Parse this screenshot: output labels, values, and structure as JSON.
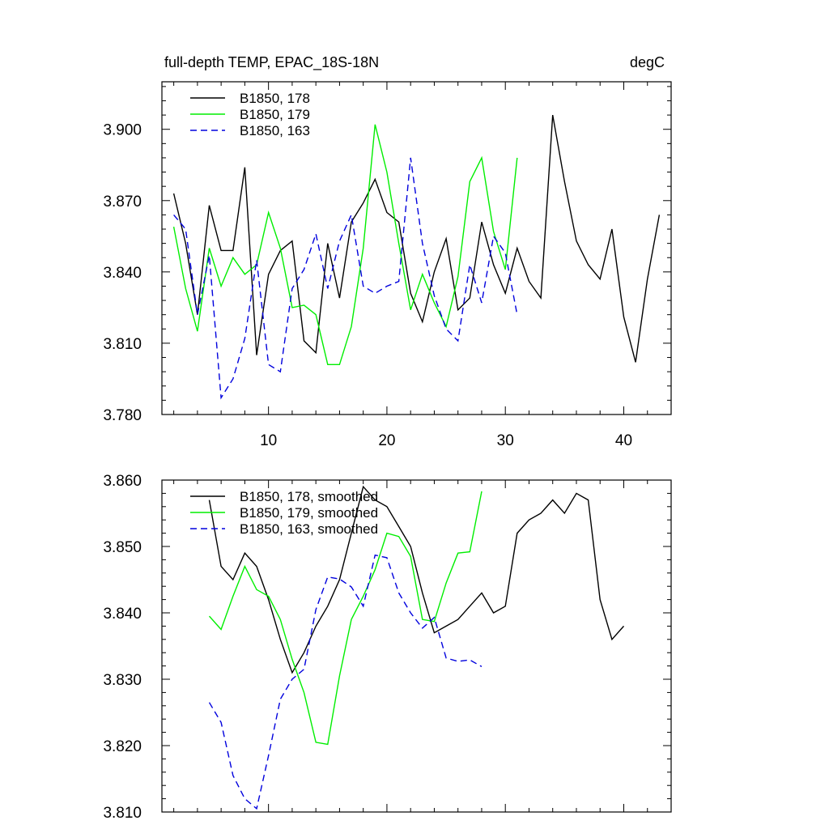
{
  "colors": {
    "s178": "#000000",
    "s179": "#00ee00",
    "s163": "#0000dd"
  },
  "chart_data": [
    {
      "type": "line",
      "title_left": "full-depth TEMP, EPAC_18S-18N",
      "title_right": "degC",
      "xlim": [
        1,
        44
      ],
      "ylim": [
        3.78,
        3.92
      ],
      "xticks_major": [
        10,
        20,
        30,
        40
      ],
      "xtick_labels": [
        "10",
        "20",
        "30",
        "40"
      ],
      "yticks_major": [
        3.78,
        3.81,
        3.84,
        3.87,
        3.9
      ],
      "ytick_labels": [
        "3.780",
        "3.810",
        "3.840",
        "3.870",
        "3.900"
      ],
      "legend_position": "top-left",
      "series": [
        {
          "name": "B1850, 178",
          "color": "#000000",
          "dash": "",
          "x": [
            2,
            3,
            4,
            5,
            6,
            7,
            8,
            9,
            10,
            11,
            12,
            13,
            14,
            15,
            16,
            17,
            18,
            19,
            20,
            21,
            22,
            23,
            24,
            25,
            26,
            27,
            28,
            29,
            30,
            31,
            32,
            33,
            34,
            35,
            36,
            37,
            38,
            39,
            40,
            41,
            42,
            43
          ],
          "y": [
            3.873,
            3.852,
            3.822,
            3.868,
            3.849,
            3.849,
            3.884,
            3.805,
            3.839,
            3.849,
            3.853,
            3.811,
            3.806,
            3.852,
            3.829,
            3.861,
            3.869,
            3.879,
            3.865,
            3.861,
            3.831,
            3.819,
            3.84,
            3.854,
            3.824,
            3.829,
            3.861,
            3.843,
            3.831,
            3.85,
            3.836,
            3.829,
            3.906,
            3.878,
            3.853,
            3.843,
            3.837,
            3.858,
            3.821,
            3.802,
            3.837,
            3.864
          ]
        },
        {
          "name": "B1850, 179",
          "color": "#00ee00",
          "dash": "",
          "x": [
            2,
            3,
            4,
            5,
            6,
            7,
            8,
            9,
            10,
            11,
            12,
            13,
            14,
            15,
            16,
            17,
            18,
            19,
            20,
            21,
            22,
            23,
            24,
            25,
            26,
            27,
            28,
            29,
            30,
            31
          ],
          "y": [
            3.859,
            3.833,
            3.815,
            3.85,
            3.834,
            3.846,
            3.839,
            3.843,
            3.865,
            3.85,
            3.825,
            3.826,
            3.822,
            3.801,
            3.801,
            3.817,
            3.85,
            3.902,
            3.882,
            3.852,
            3.824,
            3.839,
            3.827,
            3.817,
            3.838,
            3.878,
            3.888,
            3.857,
            3.841,
            3.888
          ]
        },
        {
          "name": "B1850, 163",
          "color": "#0000dd",
          "dash": "8,5",
          "x": [
            2,
            3,
            4,
            5,
            6,
            7,
            8,
            9,
            10,
            11,
            12,
            13,
            14,
            15,
            16,
            17,
            18,
            19,
            20,
            21,
            22,
            23,
            24,
            25,
            26,
            27,
            28,
            29,
            30,
            31
          ],
          "y": [
            3.864,
            3.858,
            3.822,
            3.847,
            3.787,
            3.795,
            3.812,
            3.845,
            3.801,
            3.798,
            3.833,
            3.841,
            3.856,
            3.833,
            3.853,
            3.864,
            3.834,
            3.831,
            3.834,
            3.836,
            3.888,
            3.852,
            3.83,
            3.816,
            3.811,
            3.843,
            3.827,
            3.855,
            3.848,
            3.822
          ]
        }
      ]
    },
    {
      "type": "line",
      "xlim": [
        1,
        44
      ],
      "ylim": [
        3.81,
        3.86
      ],
      "xticks_major": [
        10,
        20,
        30,
        40
      ],
      "yticks_major": [
        3.81,
        3.82,
        3.83,
        3.84,
        3.85,
        3.86
      ],
      "ytick_labels": [
        "3.810",
        "3.820",
        "3.830",
        "3.840",
        "3.850",
        "3.860"
      ],
      "legend_position": "top-left",
      "series": [
        {
          "name": "B1850, 178, smoothed",
          "color": "#000000",
          "dash": "",
          "x": [
            5,
            6,
            7,
            8,
            9,
            10,
            11,
            12,
            13,
            14,
            15,
            16,
            17,
            18,
            19,
            20,
            21,
            22,
            23,
            24,
            25,
            26,
            27,
            28,
            29,
            30,
            31,
            32,
            33,
            34,
            35,
            36,
            37,
            38,
            39,
            40
          ],
          "y": [
            3.857,
            3.847,
            3.845,
            3.849,
            3.847,
            3.842,
            3.836,
            3.831,
            3.834,
            3.838,
            3.841,
            3.845,
            3.852,
            3.859,
            3.857,
            3.856,
            3.853,
            3.85,
            3.843,
            3.837,
            3.838,
            3.839,
            3.841,
            3.843,
            3.84,
            3.841,
            3.852,
            3.854,
            3.855,
            3.857,
            3.855,
            3.858,
            3.857,
            3.842,
            3.836,
            3.838
          ]
        },
        {
          "name": "B1850, 179, smoothed",
          "color": "#00ee00",
          "dash": "",
          "x": [
            5,
            6,
            7,
            8,
            9,
            10,
            11,
            12,
            13,
            14,
            15,
            16,
            17,
            18,
            19,
            20,
            21,
            22,
            23,
            24,
            25,
            26,
            27,
            28
          ],
          "y": [
            3.8395,
            3.8375,
            3.8425,
            3.847,
            3.8435,
            3.8425,
            3.839,
            3.833,
            3.828,
            3.8205,
            3.8202,
            3.8305,
            3.839,
            3.8425,
            3.8465,
            3.852,
            3.8515,
            3.8485,
            3.839,
            3.8387,
            3.8445,
            3.849,
            3.8492,
            3.8583
          ]
        },
        {
          "name": "B1850, 163, smoothed",
          "color": "#0000dd",
          "dash": "8,5",
          "x": [
            5,
            6,
            7,
            8,
            9,
            10,
            11,
            12,
            13,
            14,
            15,
            16,
            17,
            18,
            19,
            20,
            21,
            22,
            23,
            24,
            25,
            26,
            27,
            28
          ],
          "y": [
            3.8265,
            3.8235,
            3.8155,
            3.812,
            3.8105,
            3.8185,
            3.827,
            3.83,
            3.8315,
            3.8405,
            3.8454,
            3.8451,
            3.8439,
            3.841,
            3.8487,
            3.8483,
            3.843,
            3.84,
            3.8377,
            3.8393,
            3.8332,
            3.8327,
            3.8329,
            3.8319
          ]
        }
      ]
    }
  ]
}
